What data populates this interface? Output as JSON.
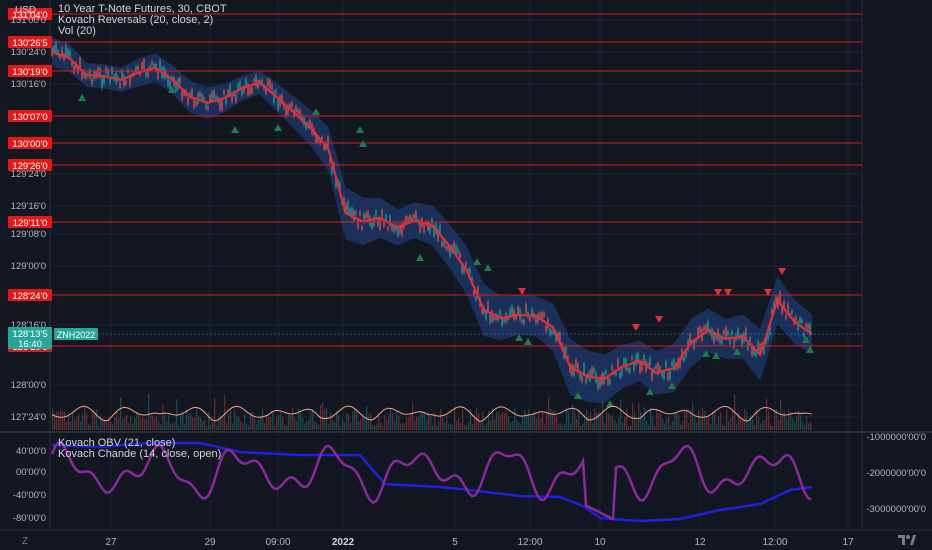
{
  "legend": {
    "currency": "USD",
    "instrument": "10 Year T-Note Futures, 30, CBOT",
    "indicator_1": "Kovach Reversals (20, close, 2)",
    "indicator_2": "Vol (20)",
    "indicator_3": "Kovach OBV (21, close)",
    "indicator_4": "Kovach Chande (14, close, open)"
  },
  "colors": {
    "background": "#131722",
    "level_line": "#e01a1a",
    "level_label_bg": "#e01a1a",
    "moving_average": "#e0303a",
    "band_fill": "#1e3a6e",
    "candle_up": "#26a69a",
    "candle_down": "#ef5350",
    "reversal_up": "#1f7a4d",
    "reversal_down": "#e0303a",
    "obv_line": "#1f1fe0",
    "chande_line": "#8a2a9a",
    "volume_avg": "#f4a38a",
    "price_tag_bg": "#26a69a"
  },
  "price_axis": {
    "tick_labels": [
      "131'00'0",
      "130'24'0",
      "130'16'0",
      "129'24'0",
      "129'16'0",
      "129'08'0",
      "129'00'0",
      "128'16'0",
      "128'00'0",
      "127'24'0"
    ],
    "level_labels": [
      "131'04'0",
      "130'26'5",
      "130'19'0",
      "130'07'0",
      "130'00'0",
      "129'26'0",
      "129'11'0",
      "128'24'0",
      "128'10'5"
    ],
    "current_price": "128'13'5",
    "countdown": "16:40",
    "symbol_tag": "ZNH2022"
  },
  "lower_axis": {
    "left_labels": [
      "40'00'0",
      "00'00'0",
      "-40'00'0",
      "-80'00'0"
    ],
    "right_labels": [
      "-1000000'00'0",
      "-2000000'00'0",
      "-3000000'00'0"
    ]
  },
  "time_axis": {
    "labels": [
      "27",
      "29",
      "09:00",
      "2022",
      "5",
      "12:00",
      "10",
      "12",
      "12:00",
      "17"
    ],
    "corner_label": "Z"
  },
  "chart_data": {
    "type": "line",
    "price_series_approx": [
      {
        "x": 0,
        "y": 130.75
      },
      {
        "x": 4,
        "y": 130.7
      },
      {
        "x": 8,
        "y": 130.56
      },
      {
        "x": 12,
        "y": 130.55
      },
      {
        "x": 16,
        "y": 130.52
      },
      {
        "x": 20,
        "y": 130.58
      },
      {
        "x": 24,
        "y": 130.62
      },
      {
        "x": 28,
        "y": 130.52
      },
      {
        "x": 32,
        "y": 130.38
      },
      {
        "x": 36,
        "y": 130.33
      },
      {
        "x": 40,
        "y": 130.37
      },
      {
        "x": 44,
        "y": 130.45
      },
      {
        "x": 48,
        "y": 130.5
      },
      {
        "x": 52,
        "y": 130.38
      },
      {
        "x": 56,
        "y": 130.25
      },
      {
        "x": 60,
        "y": 130.12
      },
      {
        "x": 64,
        "y": 129.95
      },
      {
        "x": 68,
        "y": 129.42
      },
      {
        "x": 72,
        "y": 129.35
      },
      {
        "x": 76,
        "y": 129.38
      },
      {
        "x": 80,
        "y": 129.3
      },
      {
        "x": 84,
        "y": 129.36
      },
      {
        "x": 88,
        "y": 129.32
      },
      {
        "x": 92,
        "y": 129.15
      },
      {
        "x": 96,
        "y": 128.95
      },
      {
        "x": 100,
        "y": 128.62
      },
      {
        "x": 104,
        "y": 128.55
      },
      {
        "x": 108,
        "y": 128.58
      },
      {
        "x": 112,
        "y": 128.57
      },
      {
        "x": 116,
        "y": 128.48
      },
      {
        "x": 120,
        "y": 128.15
      },
      {
        "x": 124,
        "y": 128.07
      },
      {
        "x": 128,
        "y": 128.05
      },
      {
        "x": 132,
        "y": 128.15
      },
      {
        "x": 136,
        "y": 128.2
      },
      {
        "x": 140,
        "y": 128.1
      },
      {
        "x": 144,
        "y": 128.14
      },
      {
        "x": 148,
        "y": 128.35
      },
      {
        "x": 152,
        "y": 128.45
      },
      {
        "x": 156,
        "y": 128.38
      },
      {
        "x": 160,
        "y": 128.4
      },
      {
        "x": 164,
        "y": 128.25
      },
      {
        "x": 168,
        "y": 128.7
      },
      {
        "x": 172,
        "y": 128.52
      },
      {
        "x": 176,
        "y": 128.42
      }
    ],
    "levels": [
      "131'04'0",
      "130'26'5",
      "130'19'0",
      "130'07'0",
      "130'00'0",
      "129'26'0",
      "129'11'0",
      "128'24'0",
      "128'10'5"
    ]
  }
}
